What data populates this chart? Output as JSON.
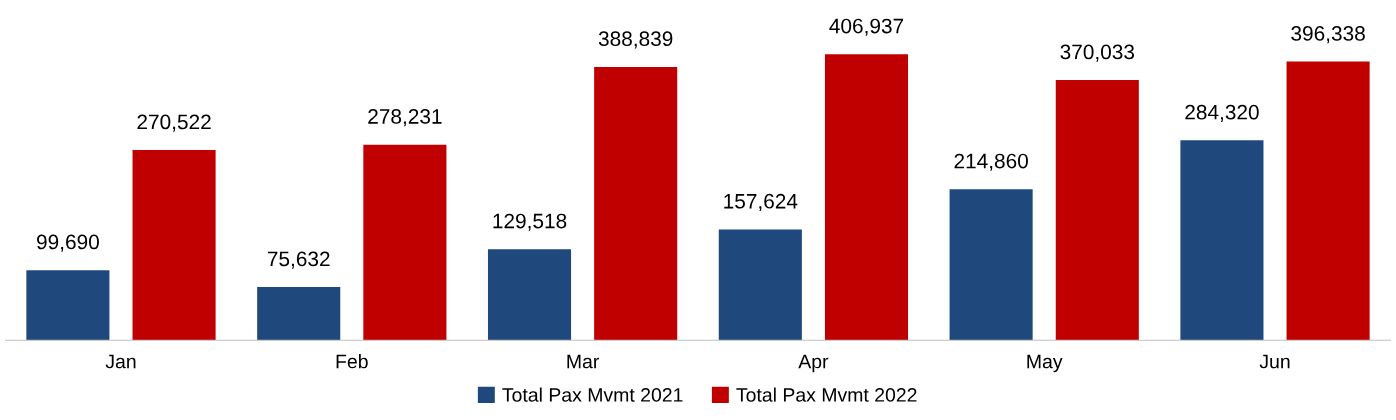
{
  "chart_data": {
    "type": "bar",
    "categories": [
      "Jan",
      "Feb",
      "Mar",
      "Apr",
      "May",
      "Jun"
    ],
    "series": [
      {
        "name": "Total Pax Mvmt 2021",
        "color": "#1f497d",
        "values": [
          99690,
          75632,
          129518,
          157624,
          214860,
          284320
        ],
        "value_labels": [
          "99,690",
          "75,632",
          "129,518",
          "157,624",
          "214,860",
          "284,320"
        ]
      },
      {
        "name": "Total Pax Mvmt 2022",
        "color": "#c00000",
        "values": [
          270522,
          278231,
          388839,
          406937,
          370033,
          396338
        ],
        "value_labels": [
          "270,522",
          "278,231",
          "388,839",
          "406,937",
          "370,033",
          "396,338"
        ]
      }
    ],
    "legend": "bottom"
  }
}
